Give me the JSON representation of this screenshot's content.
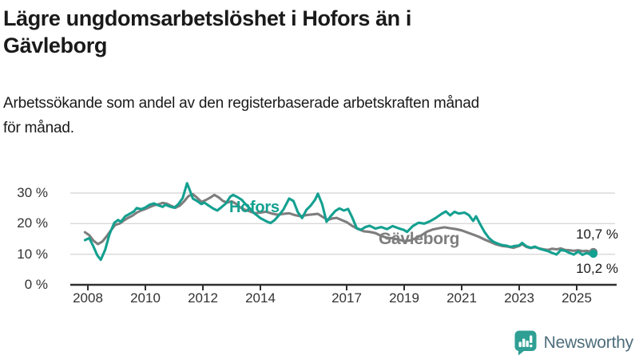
{
  "title_line1": "Lägre ungdomsarbetslöshet i Hofors än i",
  "title_line2": "Gävleborg",
  "subtitle_line1": "Arbetssökande som andel av den registerbaserade arbetskraften månad",
  "subtitle_line2": "för månad.",
  "colors": {
    "hofors_teal": "#14a090",
    "gavleborg_gray": "#7e7e7e",
    "axis": "#2f2f2f",
    "grid": "#d9d9d9",
    "logo_teal": "#2f9f94",
    "logo_text": "#4d6d7b"
  },
  "logo": {
    "text": "Newsworthy"
  },
  "chart_data": {
    "type": "line",
    "title": "Lägre ungdomsarbetslöshet i Hofors än i Gävleborg",
    "subtitle": "Arbetssökande som andel av den registerbaserade arbetskraften månad för månad.",
    "xlabel": "",
    "ylabel": "",
    "ylim": [
      0,
      35
    ],
    "xlim": [
      2007.8,
      2026.3
    ],
    "grid": "horizontal",
    "legend_position": "inline-labels",
    "yticks": [
      {
        "value": 0,
        "label": "0 %"
      },
      {
        "value": 10,
        "label": "10 %"
      },
      {
        "value": 20,
        "label": "20 %"
      },
      {
        "value": 30,
        "label": "30 %"
      }
    ],
    "xticks": [
      {
        "value": 2008,
        "label": "2008"
      },
      {
        "value": 2010,
        "label": "2010"
      },
      {
        "value": 2012,
        "label": "2012"
      },
      {
        "value": 2014,
        "label": "2014"
      },
      {
        "value": 2017,
        "label": "2017"
      },
      {
        "value": 2019,
        "label": "2019"
      },
      {
        "value": 2021,
        "label": "2021"
      },
      {
        "value": 2023,
        "label": "2023"
      },
      {
        "value": 2025,
        "label": "2025"
      }
    ],
    "series": [
      {
        "name": "Gävleborg",
        "color": "#7e7e7e",
        "end_label": "10,7 %",
        "end_value": 10.7,
        "points": [
          [
            2007.9,
            17.2
          ],
          [
            2008.05,
            16.2
          ],
          [
            2008.2,
            14.4
          ],
          [
            2008.35,
            13.3
          ],
          [
            2008.5,
            14.1
          ],
          [
            2008.65,
            15.8
          ],
          [
            2008.8,
            17.8
          ],
          [
            2008.95,
            19.6
          ],
          [
            2009.1,
            20.0
          ],
          [
            2009.25,
            21.0
          ],
          [
            2009.4,
            21.9
          ],
          [
            2009.55,
            22.6
          ],
          [
            2009.7,
            23.6
          ],
          [
            2009.85,
            24.3
          ],
          [
            2010.0,
            24.8
          ],
          [
            2010.15,
            25.4
          ],
          [
            2010.3,
            26.0
          ],
          [
            2010.45,
            26.3
          ],
          [
            2010.6,
            26.8
          ],
          [
            2010.75,
            26.5
          ],
          [
            2010.9,
            25.8
          ],
          [
            2011.05,
            25.2
          ],
          [
            2011.2,
            25.9
          ],
          [
            2011.35,
            27.3
          ],
          [
            2011.5,
            29.0
          ],
          [
            2011.65,
            29.6
          ],
          [
            2011.8,
            28.5
          ],
          [
            2011.95,
            27.1
          ],
          [
            2012.1,
            27.7
          ],
          [
            2012.25,
            28.5
          ],
          [
            2012.4,
            29.4
          ],
          [
            2012.55,
            28.6
          ],
          [
            2012.7,
            27.4
          ],
          [
            2012.85,
            26.9
          ],
          [
            2013.0,
            27.3
          ],
          [
            2013.15,
            26.5
          ],
          [
            2013.3,
            25.3
          ],
          [
            2013.45,
            24.6
          ],
          [
            2013.6,
            24.1
          ],
          [
            2013.8,
            23.4
          ],
          [
            2014.0,
            23.6
          ],
          [
            2014.2,
            23.9
          ],
          [
            2014.4,
            23.3
          ],
          [
            2014.6,
            22.9
          ],
          [
            2014.8,
            23.2
          ],
          [
            2015.0,
            23.4
          ],
          [
            2015.2,
            22.8
          ],
          [
            2015.4,
            22.4
          ],
          [
            2015.6,
            22.8
          ],
          [
            2015.8,
            23.0
          ],
          [
            2016.0,
            23.2
          ],
          [
            2016.2,
            22.0
          ],
          [
            2016.35,
            21.2
          ],
          [
            2016.5,
            21.7
          ],
          [
            2016.65,
            21.9
          ],
          [
            2016.8,
            21.3
          ],
          [
            2017.0,
            20.5
          ],
          [
            2017.2,
            19.2
          ],
          [
            2017.4,
            18.2
          ],
          [
            2017.6,
            17.5
          ],
          [
            2017.8,
            17.3
          ],
          [
            2018.0,
            16.9
          ],
          [
            2018.2,
            16.0
          ],
          [
            2018.4,
            15.4
          ],
          [
            2018.6,
            15.2
          ],
          [
            2018.8,
            14.8
          ],
          [
            2019.0,
            14.3
          ],
          [
            2019.2,
            14.5
          ],
          [
            2019.4,
            15.2
          ],
          [
            2019.6,
            16.2
          ],
          [
            2019.8,
            17.4
          ],
          [
            2020.0,
            18.1
          ],
          [
            2020.2,
            18.5
          ],
          [
            2020.4,
            18.8
          ],
          [
            2020.6,
            18.5
          ],
          [
            2020.8,
            18.2
          ],
          [
            2021.0,
            17.8
          ],
          [
            2021.2,
            17.1
          ],
          [
            2021.4,
            16.4
          ],
          [
            2021.6,
            15.7
          ],
          [
            2021.8,
            14.8
          ],
          [
            2022.0,
            14.0
          ],
          [
            2022.2,
            13.2
          ],
          [
            2022.4,
            12.7
          ],
          [
            2022.6,
            12.5
          ],
          [
            2022.8,
            12.1
          ],
          [
            2023.0,
            12.7
          ],
          [
            2023.1,
            13.3
          ],
          [
            2023.25,
            12.4
          ],
          [
            2023.4,
            12.0
          ],
          [
            2023.55,
            12.3
          ],
          [
            2023.7,
            11.9
          ],
          [
            2023.85,
            11.6
          ],
          [
            2024.0,
            11.4
          ],
          [
            2024.15,
            11.8
          ],
          [
            2024.3,
            11.6
          ],
          [
            2024.45,
            11.9
          ],
          [
            2024.6,
            11.4
          ],
          [
            2024.75,
            11.3
          ],
          [
            2024.9,
            11.1
          ],
          [
            2025.05,
            11.3
          ],
          [
            2025.2,
            11.0
          ],
          [
            2025.35,
            11.1
          ],
          [
            2025.5,
            10.8
          ],
          [
            2025.58,
            10.7
          ]
        ]
      },
      {
        "name": "Hofors",
        "color": "#14a090",
        "end_label": "10,2 %",
        "end_value": 10.2,
        "points": [
          [
            2007.9,
            14.6
          ],
          [
            2008.05,
            15.3
          ],
          [
            2008.2,
            12.4
          ],
          [
            2008.33,
            9.6
          ],
          [
            2008.45,
            8.2
          ],
          [
            2008.6,
            11.4
          ],
          [
            2008.75,
            16.5
          ],
          [
            2008.92,
            20.3
          ],
          [
            2009.05,
            21.2
          ],
          [
            2009.15,
            20.6
          ],
          [
            2009.3,
            22.4
          ],
          [
            2009.45,
            23.2
          ],
          [
            2009.6,
            24.0
          ],
          [
            2009.7,
            25.1
          ],
          [
            2009.85,
            24.7
          ],
          [
            2010.0,
            25.3
          ],
          [
            2010.15,
            26.2
          ],
          [
            2010.3,
            26.6
          ],
          [
            2010.45,
            26.0
          ],
          [
            2010.6,
            25.5
          ],
          [
            2010.7,
            26.2
          ],
          [
            2010.85,
            25.6
          ],
          [
            2011.0,
            25.2
          ],
          [
            2011.15,
            26.4
          ],
          [
            2011.3,
            28.4
          ],
          [
            2011.45,
            33.2
          ],
          [
            2011.55,
            30.8
          ],
          [
            2011.65,
            28.2
          ],
          [
            2011.8,
            27.4
          ],
          [
            2011.95,
            26.4
          ],
          [
            2012.05,
            26.9
          ],
          [
            2012.2,
            25.9
          ],
          [
            2012.35,
            25.0
          ],
          [
            2012.5,
            24.3
          ],
          [
            2012.65,
            25.4
          ],
          [
            2012.8,
            26.6
          ],
          [
            2012.95,
            28.8
          ],
          [
            2013.05,
            29.4
          ],
          [
            2013.2,
            28.7
          ],
          [
            2013.35,
            27.8
          ],
          [
            2013.5,
            26.2
          ],
          [
            2013.65,
            24.8
          ],
          [
            2013.8,
            23.3
          ],
          [
            2014.0,
            21.8
          ],
          [
            2014.2,
            20.8
          ],
          [
            2014.35,
            20.2
          ],
          [
            2014.5,
            21.2
          ],
          [
            2014.65,
            22.8
          ],
          [
            2014.8,
            24.6
          ],
          [
            2015.0,
            28.2
          ],
          [
            2015.15,
            27.4
          ],
          [
            2015.3,
            23.8
          ],
          [
            2015.45,
            21.8
          ],
          [
            2015.6,
            24.5
          ],
          [
            2015.75,
            25.9
          ],
          [
            2015.9,
            27.8
          ],
          [
            2016.0,
            29.8
          ],
          [
            2016.15,
            26.3
          ],
          [
            2016.3,
            20.6
          ],
          [
            2016.45,
            22.5
          ],
          [
            2016.6,
            24.1
          ],
          [
            2016.75,
            25.0
          ],
          [
            2016.9,
            24.3
          ],
          [
            2017.05,
            24.8
          ],
          [
            2017.2,
            21.9
          ],
          [
            2017.35,
            18.5
          ],
          [
            2017.5,
            18.0
          ],
          [
            2017.65,
            18.9
          ],
          [
            2017.8,
            19.3
          ],
          [
            2018.0,
            18.4
          ],
          [
            2018.2,
            18.9
          ],
          [
            2018.4,
            18.2
          ],
          [
            2018.6,
            19.2
          ],
          [
            2018.8,
            18.5
          ],
          [
            2019.0,
            17.9
          ],
          [
            2019.1,
            17.3
          ],
          [
            2019.3,
            19.2
          ],
          [
            2019.5,
            20.3
          ],
          [
            2019.7,
            20.0
          ],
          [
            2019.9,
            20.8
          ],
          [
            2020.1,
            21.9
          ],
          [
            2020.3,
            23.2
          ],
          [
            2020.45,
            24.0
          ],
          [
            2020.6,
            22.7
          ],
          [
            2020.75,
            23.9
          ],
          [
            2020.9,
            23.3
          ],
          [
            2021.1,
            23.6
          ],
          [
            2021.25,
            22.8
          ],
          [
            2021.4,
            20.9
          ],
          [
            2021.5,
            22.4
          ],
          [
            2021.65,
            19.7
          ],
          [
            2021.8,
            17.2
          ],
          [
            2021.95,
            15.3
          ],
          [
            2022.1,
            14.1
          ],
          [
            2022.25,
            13.5
          ],
          [
            2022.4,
            13.0
          ],
          [
            2022.55,
            12.8
          ],
          [
            2022.7,
            12.4
          ],
          [
            2022.85,
            12.7
          ],
          [
            2023.0,
            12.9
          ],
          [
            2023.1,
            13.7
          ],
          [
            2023.25,
            12.6
          ],
          [
            2023.4,
            12.1
          ],
          [
            2023.55,
            12.5
          ],
          [
            2023.7,
            11.8
          ],
          [
            2023.85,
            11.4
          ],
          [
            2024.0,
            11.0
          ],
          [
            2024.15,
            10.4
          ],
          [
            2024.3,
            9.9
          ],
          [
            2024.45,
            11.4
          ],
          [
            2024.6,
            11.1
          ],
          [
            2024.75,
            10.4
          ],
          [
            2024.9,
            9.9
          ],
          [
            2025.05,
            10.9
          ],
          [
            2025.2,
            9.8
          ],
          [
            2025.35,
            10.4
          ],
          [
            2025.5,
            9.8
          ],
          [
            2025.58,
            10.2
          ]
        ]
      }
    ],
    "annotations": [
      {
        "text": "Hofors",
        "color": "#14a090",
        "x": 2013.0,
        "y": 26.0
      },
      {
        "text": "Gävleborg",
        "color": "#7e7e7e",
        "x": 2018.3,
        "y": 15.5
      },
      {
        "text": "10,7 %",
        "x": 2025.9,
        "y": 16.5
      },
      {
        "text": "10,2 %",
        "x": 2025.9,
        "y": 5.3
      }
    ]
  }
}
